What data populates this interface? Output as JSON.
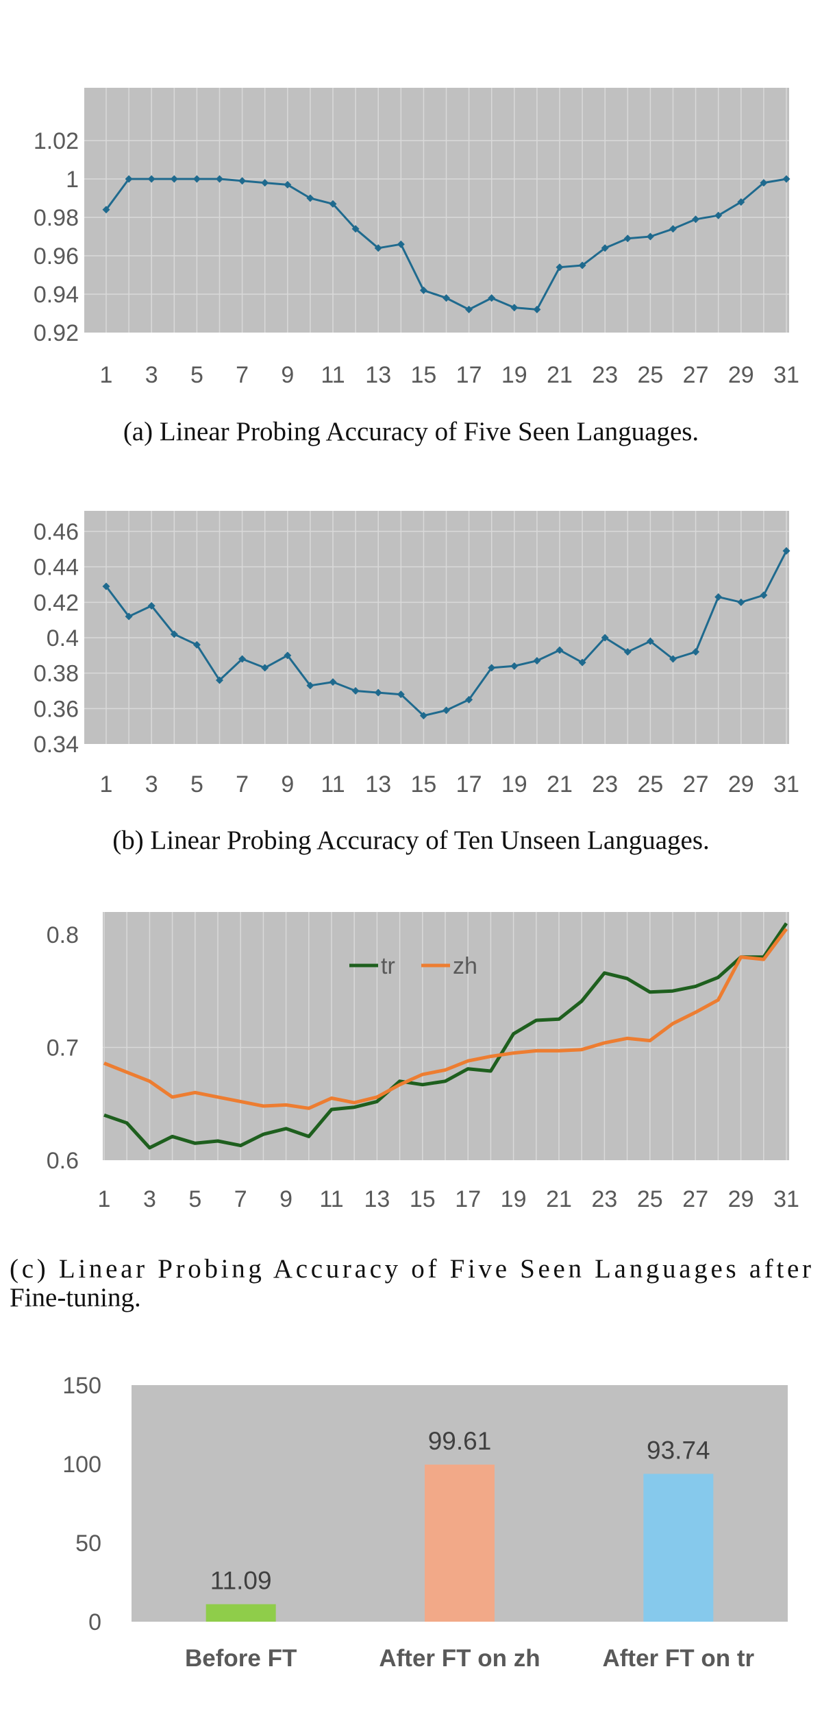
{
  "chart_data": [
    {
      "type": "line",
      "caption": "(a) Linear Probing Accuracy of Five Seen Languages.",
      "x": [
        1,
        2,
        3,
        4,
        5,
        6,
        7,
        8,
        9,
        10,
        11,
        12,
        13,
        14,
        15,
        16,
        17,
        18,
        19,
        20,
        21,
        22,
        23,
        24,
        25,
        26,
        27,
        28,
        29,
        30,
        31
      ],
      "xticks": [
        "1",
        "3",
        "5",
        "7",
        "9",
        "11",
        "13",
        "15",
        "17",
        "19",
        "21",
        "23",
        "25",
        "27",
        "29",
        "31"
      ],
      "yticks": [
        "1.02",
        "1",
        "0.98",
        "0.96",
        "0.94",
        "0.92"
      ],
      "ylim": [
        0.92,
        1.02
      ],
      "grid": true,
      "series": [
        {
          "color": "#1f6a8e",
          "markers": true,
          "values": [
            0.984,
            1.0,
            1.0,
            1.0,
            1.0,
            1.0,
            0.999,
            0.998,
            0.997,
            0.99,
            0.987,
            0.974,
            0.964,
            0.966,
            0.942,
            0.938,
            0.932,
            0.938,
            0.933,
            0.932,
            0.954,
            0.955,
            0.964,
            0.969,
            0.97,
            0.974,
            0.979,
            0.981,
            0.988,
            0.998,
            1.0
          ]
        }
      ]
    },
    {
      "type": "line",
      "caption": "(b) Linear Probing Accuracy of Ten Unseen Languages.",
      "x": [
        1,
        2,
        3,
        4,
        5,
        6,
        7,
        8,
        9,
        10,
        11,
        12,
        13,
        14,
        15,
        16,
        17,
        18,
        19,
        20,
        21,
        22,
        23,
        24,
        25,
        26,
        27,
        28,
        29,
        30,
        31
      ],
      "xticks": [
        "1",
        "3",
        "5",
        "7",
        "9",
        "11",
        "13",
        "15",
        "17",
        "19",
        "21",
        "23",
        "25",
        "27",
        "29",
        "31"
      ],
      "yticks": [
        "0.46",
        "0.44",
        "0.42",
        "0.4",
        "0.38",
        "0.36",
        "0.34"
      ],
      "ylim": [
        0.34,
        0.46
      ],
      "grid": true,
      "series": [
        {
          "color": "#1f6a8e",
          "markers": true,
          "values": [
            0.429,
            0.412,
            0.418,
            0.402,
            0.396,
            0.376,
            0.388,
            0.383,
            0.39,
            0.373,
            0.375,
            0.37,
            0.369,
            0.368,
            0.356,
            0.359,
            0.365,
            0.383,
            0.384,
            0.387,
            0.393,
            0.386,
            0.4,
            0.392,
            0.398,
            0.388,
            0.392,
            0.423,
            0.42,
            0.424,
            0.449
          ]
        }
      ]
    },
    {
      "type": "line",
      "caption_lines": [
        "(c) Linear Probing Accuracy of Five Seen Languages after",
        "Fine-tuning."
      ],
      "x": [
        1,
        2,
        3,
        4,
        5,
        6,
        7,
        8,
        9,
        10,
        11,
        12,
        13,
        14,
        15,
        16,
        17,
        18,
        19,
        20,
        21,
        22,
        23,
        24,
        25,
        26,
        27,
        28,
        29,
        30,
        31
      ],
      "xticks": [
        "1",
        "3",
        "5",
        "7",
        "9",
        "11",
        "13",
        "15",
        "17",
        "19",
        "21",
        "23",
        "25",
        "27",
        "29",
        "31"
      ],
      "yticks": [
        "0.8",
        "0.7",
        "0.6"
      ],
      "ylim": [
        0.6,
        0.82
      ],
      "grid": true,
      "legend": "top-center",
      "series": [
        {
          "name": "tr",
          "color": "#1e5f1e",
          "markers": false,
          "values": [
            0.64,
            0.633,
            0.611,
            0.621,
            0.615,
            0.617,
            0.613,
            0.623,
            0.628,
            0.621,
            0.645,
            0.647,
            0.652,
            0.67,
            0.667,
            0.67,
            0.681,
            0.679,
            0.712,
            0.724,
            0.725,
            0.741,
            0.766,
            0.761,
            0.749,
            0.75,
            0.754,
            0.762,
            0.78,
            0.78,
            0.81
          ]
        },
        {
          "name": "zh",
          "color": "#ed7d31",
          "markers": false,
          "values": [
            0.686,
            0.678,
            0.67,
            0.656,
            0.66,
            0.656,
            0.652,
            0.648,
            0.649,
            0.646,
            0.655,
            0.651,
            0.656,
            0.667,
            0.676,
            0.68,
            0.688,
            0.692,
            0.695,
            0.697,
            0.697,
            0.698,
            0.704,
            0.708,
            0.706,
            0.721,
            0.731,
            0.742,
            0.78,
            0.778,
            0.805
          ]
        }
      ]
    },
    {
      "type": "bar",
      "categories": [
        "Before FT",
        "After FT on zh",
        "After FT on tr"
      ],
      "values": [
        11.09,
        99.61,
        93.74
      ],
      "value_labels": [
        "11.09",
        "99.61",
        "93.74"
      ],
      "colors": [
        "#8fcd4a",
        "#f2a988",
        "#86c9ec"
      ],
      "yticks": [
        "150",
        "100",
        "50",
        "0"
      ],
      "ylim": [
        0,
        150
      ],
      "grid": false
    }
  ]
}
